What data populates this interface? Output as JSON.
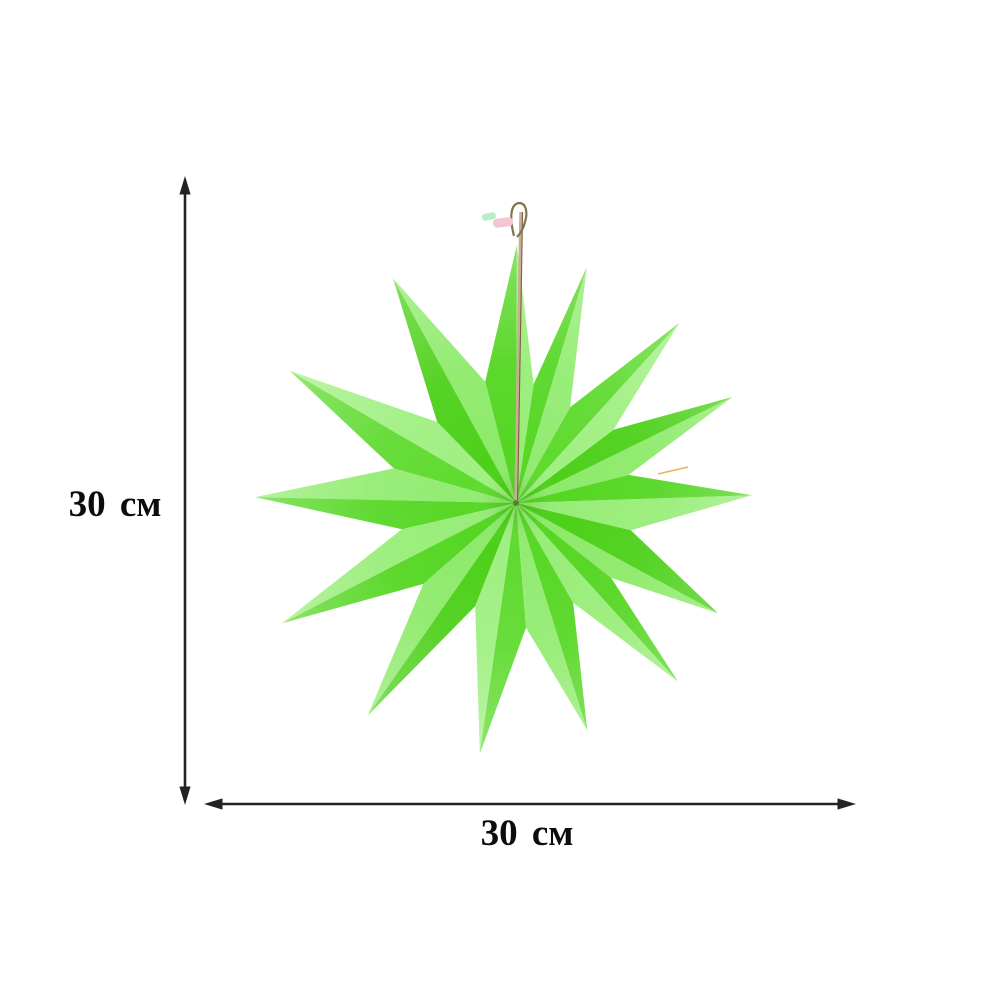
{
  "image": {
    "background": "#ffffff"
  },
  "dimensions": {
    "vertical": {
      "label": "30 см"
    },
    "horizontal": {
      "label": "30 см"
    },
    "arrow_color": "#232323",
    "label_color": "#0d0d0d"
  },
  "star": {
    "points": 14,
    "light_shades": [
      "#98ed78",
      "#8dea6a",
      "#a0f082",
      "#93ec72"
    ],
    "dark_shades": [
      "#54d622",
      "#4dd01a",
      "#5fda2f",
      "#57d726"
    ],
    "string_color": "#c9ae92",
    "string_core_color": "#6f5538",
    "loop_cord_color": "#7e764e",
    "clip_green_color": "#b9eec8",
    "clip_pink_color": "#f3c6d2",
    "stray_thread_color": "#e9a63e",
    "center_dot_color": "#3c5a1e"
  }
}
